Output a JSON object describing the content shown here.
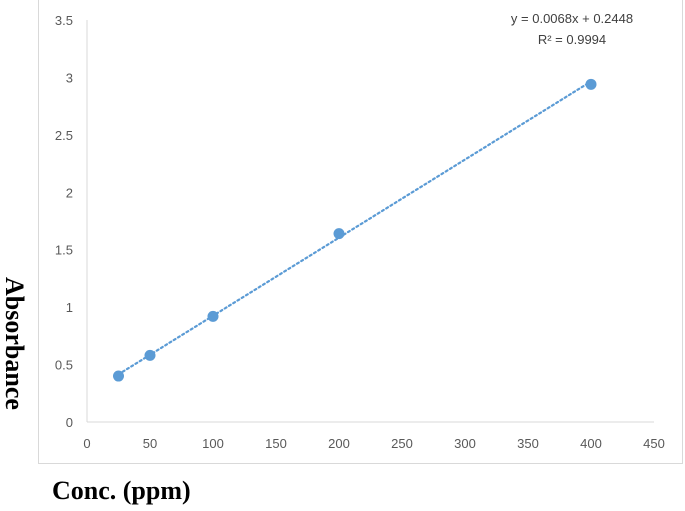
{
  "chart_data": {
    "type": "scatter",
    "title": "",
    "xlabel": "Conc. (ppm)",
    "ylabel": "Absorbance",
    "xlim": [
      0,
      450
    ],
    "ylim": [
      0,
      3.5
    ],
    "x_ticks": [
      "0",
      "50",
      "100",
      "150",
      "200",
      "250",
      "300",
      "350",
      "400",
      "450"
    ],
    "y_ticks": [
      "0",
      "0.5",
      "1",
      "1.5",
      "2",
      "2.5",
      "3",
      "3.5"
    ],
    "grid": false,
    "series": [
      {
        "x": [
          25,
          50,
          100,
          200,
          400
        ],
        "y": [
          0.4,
          0.58,
          0.92,
          1.64,
          2.94
        ],
        "color": "#5b9bd5"
      }
    ],
    "trendline": {
      "type": "linear",
      "slope": 0.0068,
      "intercept": 0.2448,
      "x_range": [
        25,
        400
      ],
      "style": "dotted",
      "color": "#5b9bd5"
    },
    "annotations": {
      "equation": "y = 0.0068x + 0.2448",
      "r_squared": "R² = 0.9994"
    }
  }
}
